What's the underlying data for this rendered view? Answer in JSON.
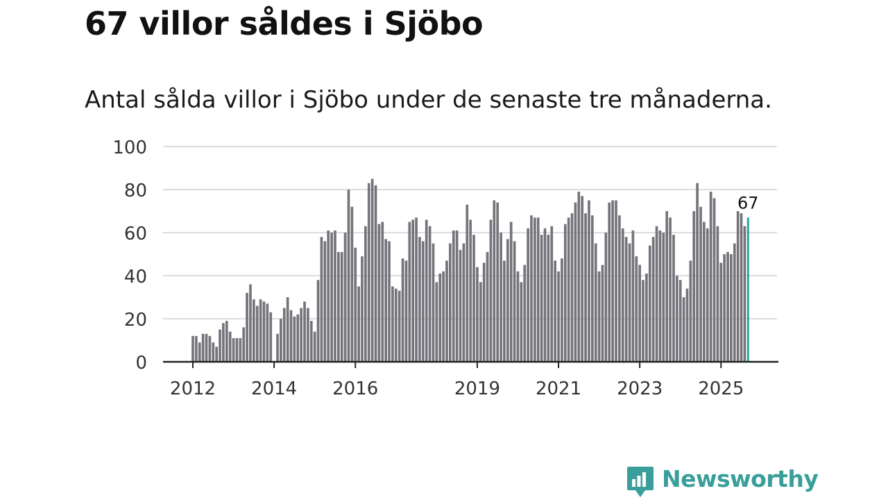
{
  "header": {
    "title": "67 villor såldes i Sjöbo",
    "subtitle": "Antal sålda villor i Sjöbo under de senaste tre månaderna."
  },
  "brand": {
    "name": "Newsworthy",
    "color": "#3a9e9a",
    "icon": "bar-chart-speech-bubble-icon"
  },
  "chart_data": {
    "type": "bar",
    "title": "Antal sålda villor i Sjöbo under de senaste tre månaderna.",
    "xlabel": "",
    "ylabel": "",
    "ylim": [
      0,
      100
    ],
    "yticks": [
      0,
      20,
      40,
      60,
      80,
      100
    ],
    "grid": true,
    "x_start": "2012-01",
    "x_tick_labels": [
      "2012",
      "2014",
      "2016",
      "2019",
      "2021",
      "2023",
      "2025"
    ],
    "x_tick_years": [
      2012,
      2014,
      2016,
      2019,
      2021,
      2023,
      2025
    ],
    "bar_color": "#75747b",
    "highlight_color": "#2aa3a3",
    "highlight_label": "67",
    "values": [
      12,
      12,
      9,
      13,
      13,
      12,
      9,
      7,
      15,
      18,
      19,
      14,
      11,
      11,
      11,
      16,
      32,
      36,
      29,
      26,
      29,
      28,
      27,
      23,
      0,
      13,
      20,
      25,
      30,
      24,
      21,
      22,
      25,
      28,
      25,
      19,
      14,
      38,
      58,
      56,
      61,
      60,
      61,
      51,
      51,
      60,
      80,
      72,
      53,
      35,
      49,
      63,
      83,
      85,
      82,
      64,
      65,
      57,
      56,
      35,
      34,
      33,
      48,
      47,
      65,
      66,
      67,
      58,
      56,
      66,
      63,
      55,
      37,
      41,
      42,
      47,
      55,
      61,
      61,
      52,
      55,
      73,
      66,
      59,
      44,
      37,
      46,
      51,
      66,
      75,
      74,
      60,
      47,
      57,
      65,
      56,
      42,
      37,
      45,
      62,
      68,
      67,
      67,
      59,
      62,
      59,
      63,
      47,
      42,
      48,
      64,
      67,
      69,
      74,
      79,
      77,
      69,
      75,
      68,
      55,
      42,
      45,
      60,
      74,
      75,
      75,
      68,
      62,
      58,
      55,
      61,
      49,
      45,
      38,
      41,
      54,
      58,
      63,
      61,
      60,
      70,
      67,
      59,
      40,
      38,
      30,
      34,
      47,
      70,
      83,
      72,
      65,
      62,
      79,
      76,
      63,
      46,
      50,
      51,
      50,
      55,
      70,
      69,
      63,
      67
    ]
  }
}
